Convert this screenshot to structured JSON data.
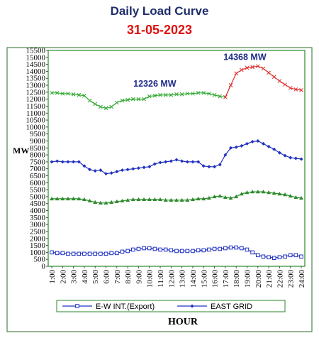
{
  "chart_data": {
    "type": "line",
    "title": "Daily Load Curve",
    "subtitle": "31-05-2023",
    "xlabel": "HOUR",
    "ylabel": "MW",
    "ylim": [
      0,
      15500
    ],
    "yticks": [
      0,
      500,
      1000,
      1500,
      2000,
      2500,
      3000,
      3500,
      4000,
      4500,
      5000,
      5500,
      6000,
      6500,
      7000,
      7500,
      8000,
      8500,
      9000,
      9500,
      10000,
      10500,
      11000,
      11500,
      12000,
      12500,
      13000,
      13500,
      14000,
      14500,
      15000,
      15500
    ],
    "categories": [
      "1:00",
      "2:00",
      "3:00",
      "4:00",
      "5:00",
      "6:00",
      "7:00",
      "8:00",
      "9:00",
      "10:00",
      "11:00",
      "12:00",
      "13:00",
      "14:00",
      "15:00",
      "16:00",
      "17:00",
      "18:00",
      "19:00",
      "20:00",
      "21:00",
      "22:00",
      "23:00",
      "24:00"
    ],
    "x": [
      1,
      1.5,
      2,
      2.5,
      3,
      3.5,
      4,
      4.5,
      5,
      5.5,
      6,
      6.5,
      7,
      7.5,
      8,
      8.5,
      9,
      9.5,
      10,
      10.5,
      11,
      11.5,
      12,
      12.5,
      13,
      13.5,
      14,
      14.5,
      15,
      15.5,
      16,
      16.5,
      17,
      17.5,
      18,
      18.5,
      19,
      19.5,
      20,
      20.5,
      21,
      21.5,
      22,
      22.5,
      23,
      23.5,
      24
    ],
    "annotations": [
      {
        "text": "12326 MW",
        "x": 10.5,
        "y": 12900,
        "color": "#1f2d8a"
      },
      {
        "text": "14368 MW",
        "x": 18.8,
        "y": 14800,
        "color": "#1f2d8a"
      }
    ],
    "legend": {
      "placement": "bottom",
      "items": [
        "E-W INT.(Export)",
        "EAST GRID"
      ]
    },
    "series": [
      {
        "color": "#2fa82f",
        "marker": "x",
        "values": [
          12450,
          12450,
          12400,
          12400,
          12350,
          12300,
          12250,
          11900,
          11650,
          11450,
          11350,
          11450,
          11750,
          11900,
          11950,
          12000,
          12000,
          12000,
          12200,
          12250,
          12300,
          12300,
          12300,
          12350,
          12350,
          12400,
          12400,
          12450,
          12450,
          12400,
          12300,
          12200,
          12150,
          13000,
          13850,
          14100,
          14250,
          14300,
          14368,
          14200,
          13900,
          13600,
          13300,
          13050,
          12800,
          12700,
          12650
        ],
        "segments": [
          {
            "from": 0,
            "to": 33,
            "color": "#2fa82f"
          },
          {
            "from": 32,
            "to": 46,
            "color": "#e03030"
          }
        ]
      },
      {
        "name": "EAST GRID",
        "color": "#2030c0",
        "marker": "diamond",
        "values": [
          7500,
          7550,
          7500,
          7500,
          7500,
          7500,
          7200,
          6950,
          6850,
          6900,
          6650,
          6700,
          6800,
          6900,
          6950,
          7000,
          7050,
          7100,
          7150,
          7350,
          7450,
          7500,
          7550,
          7650,
          7550,
          7500,
          7500,
          7500,
          7200,
          7150,
          7150,
          7300,
          8000,
          8500,
          8550,
          8650,
          8800,
          8950,
          9000,
          8800,
          8600,
          8400,
          8150,
          7950,
          7800,
          7750,
          7700
        ],
        "series_color": "#2030c0"
      },
      {
        "color": "#2e8b2e",
        "marker": "triangle",
        "values": [
          4850,
          4850,
          4850,
          4850,
          4850,
          4850,
          4800,
          4700,
          4600,
          4550,
          4550,
          4600,
          4650,
          4700,
          4750,
          4800,
          4800,
          4800,
          4800,
          4800,
          4800,
          4750,
          4750,
          4750,
          4750,
          4750,
          4800,
          4850,
          4850,
          4900,
          5000,
          5050,
          4950,
          4900,
          5000,
          5200,
          5300,
          5350,
          5350,
          5350,
          5300,
          5250,
          5200,
          5150,
          5050,
          4950,
          4900
        ]
      },
      {
        "name": "E-W INT.(Export)",
        "color": "#2030c0",
        "marker": "square",
        "values": [
          1000,
          950,
          950,
          900,
          900,
          900,
          900,
          900,
          900,
          900,
          900,
          950,
          950,
          1050,
          1100,
          1200,
          1250,
          1300,
          1300,
          1250,
          1200,
          1200,
          1150,
          1100,
          1100,
          1100,
          1100,
          1150,
          1150,
          1200,
          1250,
          1250,
          1300,
          1350,
          1350,
          1300,
          1200,
          1000,
          800,
          700,
          650,
          600,
          650,
          700,
          800,
          800,
          700
        ]
      }
    ]
  }
}
